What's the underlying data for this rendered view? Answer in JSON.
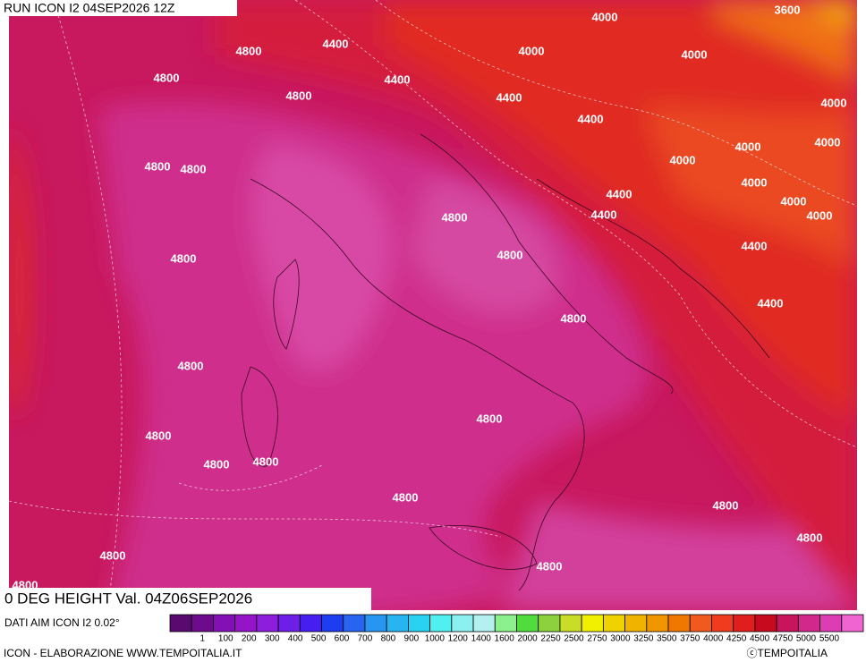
{
  "header": {
    "run": "RUN ICON I2 04SEP2026 12Z"
  },
  "map": {
    "contour_labels": [
      "3600",
      "4000",
      "4400",
      "4800",
      "4000",
      "4000",
      "4800",
      "4400",
      "4800",
      "4400",
      "4000",
      "4400",
      "4000",
      "4000",
      "4000",
      "4800",
      "4800",
      "4000",
      "4400",
      "4000",
      "4400",
      "4800",
      "4000",
      "4400",
      "4800",
      "4800",
      "4400",
      "4800",
      "4800",
      "4800",
      "4800",
      "4800",
      "4800",
      "4800",
      "4800",
      "4800",
      "4800",
      "4800",
      "4800"
    ]
  },
  "title": "0 DEG HEIGHT Val. 04Z06SEP2026",
  "legend": {
    "source": "DATI AIM ICON I2 0.02°",
    "labels": [
      "1",
      "100",
      "200",
      "300",
      "400",
      "500",
      "600",
      "700",
      "800",
      "900",
      "1000",
      "1200",
      "1400",
      "1600",
      "2000",
      "2250",
      "2500",
      "2750",
      "3000",
      "3250",
      "3500",
      "3750",
      "4000",
      "4250",
      "4500",
      "4750",
      "5000",
      "5500"
    ],
    "colors": [
      "#5a0a6e",
      "#6e0a8c",
      "#8210b4",
      "#9614c8",
      "#8c1edc",
      "#6e1ee6",
      "#461ef0",
      "#1e3cf0",
      "#2864f0",
      "#2896f0",
      "#28b4f0",
      "#28d2f0",
      "#50f0f0",
      "#8cf0f0",
      "#b4f0f0",
      "#8cf08c",
      "#50dc3c",
      "#8cd23c",
      "#c8dc28",
      "#f0f000",
      "#f0d200",
      "#f0b400",
      "#f09600",
      "#f07800",
      "#f05a1e",
      "#f03c1e",
      "#e01e1e",
      "#c80a1e",
      "#c8145a",
      "#d2288c",
      "#dc3cb4",
      "#f064d2"
    ]
  },
  "footer": {
    "credit": "ICON - ELABORAZIONE WWW.TEMPOITALIA.IT",
    "copyright": "ⓒTEMPOITALIA"
  }
}
